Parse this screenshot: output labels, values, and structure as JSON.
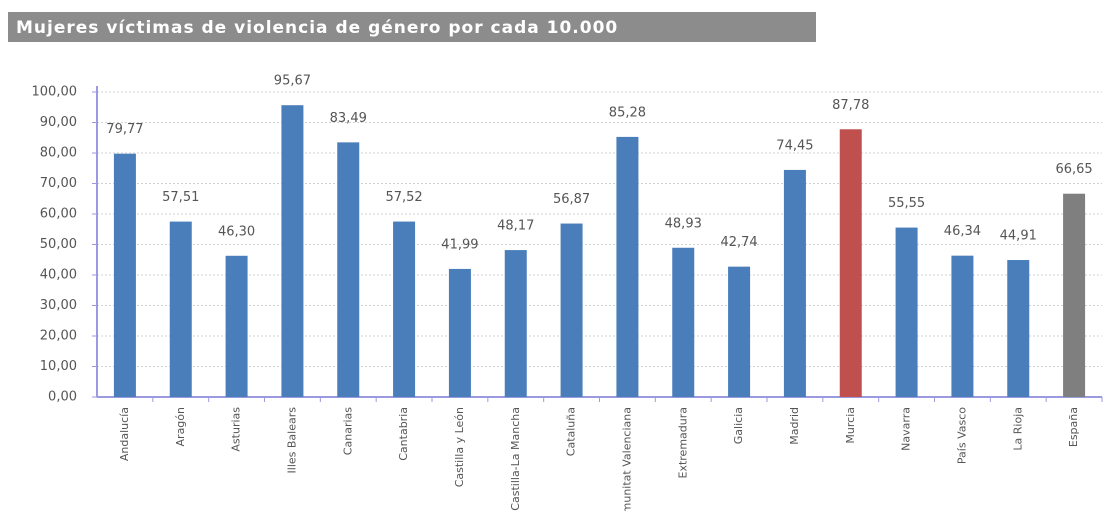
{
  "chart_data": {
    "type": "bar",
    "title": "Mujeres víctimas de violencia de género por cada 10.000",
    "categories": [
      "Andalucía",
      "Aragón",
      "Asturias",
      "Illes Balears",
      "Canarias",
      "Cantabria",
      "Castilla y León",
      "Castilla-La Mancha",
      "Cataluña",
      "Comunitat Valenciana",
      "Extremadura",
      "Galicia",
      "Madrid",
      "Murcia",
      "Navarra",
      "País Vasco",
      "La Rioja",
      "España"
    ],
    "values": [
      79.77,
      57.51,
      46.3,
      95.67,
      83.49,
      57.52,
      41.99,
      48.17,
      56.87,
      85.28,
      48.93,
      42.74,
      74.45,
      87.78,
      55.55,
      46.34,
      44.91,
      66.65
    ],
    "value_labels": [
      "79,77",
      "57,51",
      "46,30",
      "95,67",
      "83,49",
      "57,52",
      "41,99",
      "48,17",
      "56,87",
      "85,28",
      "48,93",
      "42,74",
      "74,45",
      "87,78",
      "55,55",
      "46,34",
      "44,91",
      "66,65"
    ],
    "colors": [
      "#4a7ebb",
      "#4a7ebb",
      "#4a7ebb",
      "#4a7ebb",
      "#4a7ebb",
      "#4a7ebb",
      "#4a7ebb",
      "#4a7ebb",
      "#4a7ebb",
      "#4a7ebb",
      "#4a7ebb",
      "#4a7ebb",
      "#4a7ebb",
      "#c0504d",
      "#4a7ebb",
      "#4a7ebb",
      "#4a7ebb",
      "#7f7f7f"
    ],
    "ylim": [
      0,
      100
    ],
    "yticks": [
      {
        "value": 0,
        "label": "0,00"
      },
      {
        "value": 10,
        "label": "10,00"
      },
      {
        "value": 20,
        "label": "20,00"
      },
      {
        "value": 30,
        "label": "30,00"
      },
      {
        "value": 40,
        "label": "40,00"
      },
      {
        "value": 50,
        "label": "50,00"
      },
      {
        "value": 60,
        "label": "60,00"
      },
      {
        "value": 70,
        "label": "70,00"
      },
      {
        "value": 80,
        "label": "80,00"
      },
      {
        "value": 90,
        "label": "90,00"
      },
      {
        "value": 100,
        "label": "100,00"
      }
    ],
    "grid": true
  }
}
